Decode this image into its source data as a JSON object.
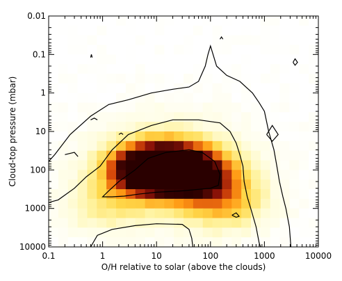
{
  "chart_data": {
    "type": "heatmap",
    "title": "",
    "xlabel": "O/H relative to solar (above the clouds)",
    "ylabel": "Cloud-top pressure (mbar)",
    "x_scale": "log",
    "y_scale": "log",
    "xlim": [
      0.1,
      10000
    ],
    "ylim": [
      10000,
      0.01
    ],
    "x_ticks": [
      0.1,
      1,
      10,
      100,
      1000,
      10000
    ],
    "x_tick_labels": [
      "0.1",
      "1",
      "10",
      "100",
      "1000",
      "10000"
    ],
    "y_ticks": [
      0.01,
      0.1,
      1,
      10,
      100,
      1000,
      10000
    ],
    "y_tick_labels": [
      "0.01",
      "0.1",
      "1",
      "10",
      "100",
      "1000",
      "10000"
    ],
    "colormap": [
      "#ffffff",
      "#fffde0",
      "#fff3a0",
      "#ffd84a",
      "#ff9a14",
      "#d94a0a",
      "#8a1208",
      "#2a0000"
    ],
    "density_peaks": [
      {
        "x": 10,
        "y": 80,
        "weight": 1.0
      },
      {
        "x": 30,
        "y": 100,
        "weight": 0.9
      },
      {
        "x": 6,
        "y": 120,
        "weight": 0.6
      },
      {
        "x": 100,
        "y": 200,
        "weight": 0.5
      },
      {
        "x": 200,
        "y": 1000,
        "weight": 0.4
      },
      {
        "x": 1,
        "y": 1000,
        "weight": 0.3
      }
    ],
    "contour_levels": [
      "inner",
      "middle",
      "outer"
    ],
    "contours": {
      "inner": [
        [
          1,
          500
        ],
        [
          1.3,
          350
        ],
        [
          2,
          200
        ],
        [
          4,
          100
        ],
        [
          7,
          50
        ],
        [
          15,
          35
        ],
        [
          40,
          30
        ],
        [
          70,
          35
        ],
        [
          120,
          60
        ],
        [
          150,
          130
        ],
        [
          140,
          250
        ],
        [
          100,
          300
        ],
        [
          30,
          350
        ],
        [
          10,
          380
        ],
        [
          5,
          420
        ],
        [
          2.5,
          480
        ],
        [
          1.5,
          500
        ],
        [
          1,
          500
        ]
      ],
      "middle": [
        [
          0.1,
          700
        ],
        [
          0.15,
          600
        ],
        [
          0.3,
          300
        ],
        [
          0.5,
          150
        ],
        [
          0.9,
          80
        ],
        [
          1.5,
          30
        ],
        [
          3,
          12
        ],
        [
          8,
          7
        ],
        [
          20,
          5
        ],
        [
          60,
          5
        ],
        [
          150,
          6
        ],
        [
          230,
          10
        ],
        [
          300,
          20
        ],
        [
          350,
          40
        ],
        [
          400,
          80
        ],
        [
          420,
          200
        ],
        [
          480,
          500
        ],
        [
          580,
          1200
        ],
        [
          700,
          3000
        ],
        [
          800,
          8000
        ],
        [
          850,
          10000
        ]
      ],
      "outer": [
        [
          0.1,
          60
        ],
        [
          0.13,
          40
        ],
        [
          0.25,
          12
        ],
        [
          0.6,
          4
        ],
        [
          1.3,
          2
        ],
        [
          3,
          1.5
        ],
        [
          8,
          1
        ],
        [
          20,
          0.8
        ],
        [
          40,
          0.7
        ],
        [
          60,
          0.5
        ],
        [
          80,
          0.2
        ],
        [
          90,
          0.1
        ],
        [
          100,
          0.06
        ],
        [
          130,
          0.2
        ],
        [
          200,
          0.35
        ],
        [
          350,
          0.5
        ],
        [
          600,
          1
        ],
        [
          800,
          1.8
        ],
        [
          1000,
          3
        ],
        [
          1200,
          10
        ],
        [
          1500,
          30
        ],
        [
          1700,
          80
        ],
        [
          1900,
          200
        ],
        [
          2200,
          500
        ],
        [
          2500,
          1000
        ],
        [
          2900,
          3000
        ],
        [
          3100,
          10000
        ]
      ],
      "bottom": [
        [
          0.6,
          10000
        ],
        [
          0.8,
          5000
        ],
        [
          1.5,
          3500
        ],
        [
          4,
          2800
        ],
        [
          10,
          2500
        ],
        [
          30,
          2600
        ],
        [
          40,
          3500
        ],
        [
          45,
          6000
        ],
        [
          47,
          10000
        ]
      ],
      "blips": [
        [
          [
            0.6,
            0.12
          ],
          [
            0.62,
            0.1
          ],
          [
            0.64,
            0.12
          ]
        ],
        [
          [
            12,
            0.01
          ],
          [
            13,
            0.009
          ],
          [
            14,
            0.01
          ]
        ],
        [
          [
            150,
            0.04
          ],
          [
            160,
            0.035
          ],
          [
            170,
            0.04
          ]
        ],
        [
          [
            530,
            0.01
          ],
          [
            560,
            0.009
          ],
          [
            590,
            0.01
          ]
        ],
        [
          [
            3400,
            0.16
          ],
          [
            3700,
            0.13
          ],
          [
            4100,
            0.16
          ],
          [
            3700,
            0.19
          ],
          [
            3400,
            0.16
          ]
        ],
        [
          [
            1100,
            12
          ],
          [
            1400,
            7
          ],
          [
            1800,
            12
          ],
          [
            1400,
            18
          ],
          [
            1100,
            12
          ]
        ],
        [
          [
            0.6,
            5
          ],
          [
            0.7,
            4.5
          ],
          [
            0.8,
            5
          ]
        ],
        [
          [
            2,
            12
          ],
          [
            2.2,
            11
          ],
          [
            2.4,
            12
          ]
        ],
        [
          [
            0.2,
            40
          ],
          [
            0.3,
            35
          ],
          [
            0.35,
            45
          ]
        ],
        [
          [
            250,
            1500
          ],
          [
            300,
            1300
          ],
          [
            340,
            1600
          ],
          [
            300,
            1700
          ],
          [
            250,
            1500
          ]
        ]
      ]
    }
  }
}
